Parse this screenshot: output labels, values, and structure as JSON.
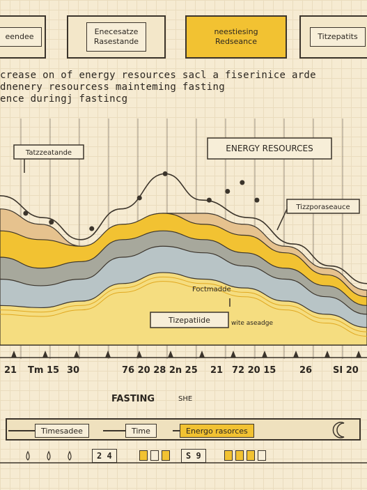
{
  "top_cards": [
    {
      "label": "eendee"
    },
    {
      "label": "Enecesatze\nRasestande"
    },
    {
      "label": "neestiesing\nRedseance"
    },
    {
      "label": "Titzepatits"
    }
  ],
  "headline": [
    "crease on of energy resources sacl a fiserinice arde",
    "dnenery resourcess mainteming fasting",
    "ence duringj fastincg"
  ],
  "annotations": {
    "top_left": "Tatzzeatande",
    "energy_box": "ENERGY RESOURCES",
    "right": "Tizzporaseauce",
    "footnote": "Foctmadde",
    "tizepatide": "Tizepatiide",
    "wite": "wite aseadge"
  },
  "colors": {
    "background": "#f6ebd2",
    "tan": "#e6c28e",
    "yellow": "#f2c232",
    "gray": "#a7a89c",
    "blue_gray": "#b8c4c6",
    "pale_yellow": "#f5dd80",
    "ink": "#3b342b"
  },
  "chart_data": {
    "type": "area",
    "title": "",
    "xlabel": "FASTING",
    "ylabel": "",
    "x_tick_labels": [
      "21",
      "Tm 15",
      "30",
      "76 20 28 2n 25",
      "21",
      "72 20 15",
      "26",
      "SI 20"
    ],
    "series": [
      {
        "name": "",
        "color": "tan",
        "values": [
          0.62,
          0.55,
          0.45,
          0.52,
          0.6,
          0.6,
          0.55,
          0.45,
          0.35,
          0.25
        ]
      },
      {
        "name": "",
        "color": "yellow",
        "values": [
          0.52,
          0.48,
          0.45,
          0.55,
          0.6,
          0.55,
          0.5,
          0.42,
          0.32,
          0.22
        ]
      },
      {
        "name": "",
        "color": "gray",
        "values": [
          0.4,
          0.35,
          0.38,
          0.48,
          0.52,
          0.48,
          0.42,
          0.35,
          0.27,
          0.18
        ]
      },
      {
        "name": "",
        "color": "blue_gray",
        "values": [
          0.3,
          0.27,
          0.3,
          0.4,
          0.45,
          0.42,
          0.36,
          0.3,
          0.22,
          0.14
        ]
      },
      {
        "name": "",
        "color": "pale_yellow",
        "values": [
          0.18,
          0.17,
          0.2,
          0.28,
          0.33,
          0.3,
          0.26,
          0.2,
          0.14,
          0.08
        ]
      }
    ]
  },
  "x_label_secondary": "SHE",
  "legend": {
    "items": [
      "Timesadee",
      "Time",
      "Energo rasorces"
    ]
  },
  "counters": [
    "2 4",
    "S 9"
  ]
}
